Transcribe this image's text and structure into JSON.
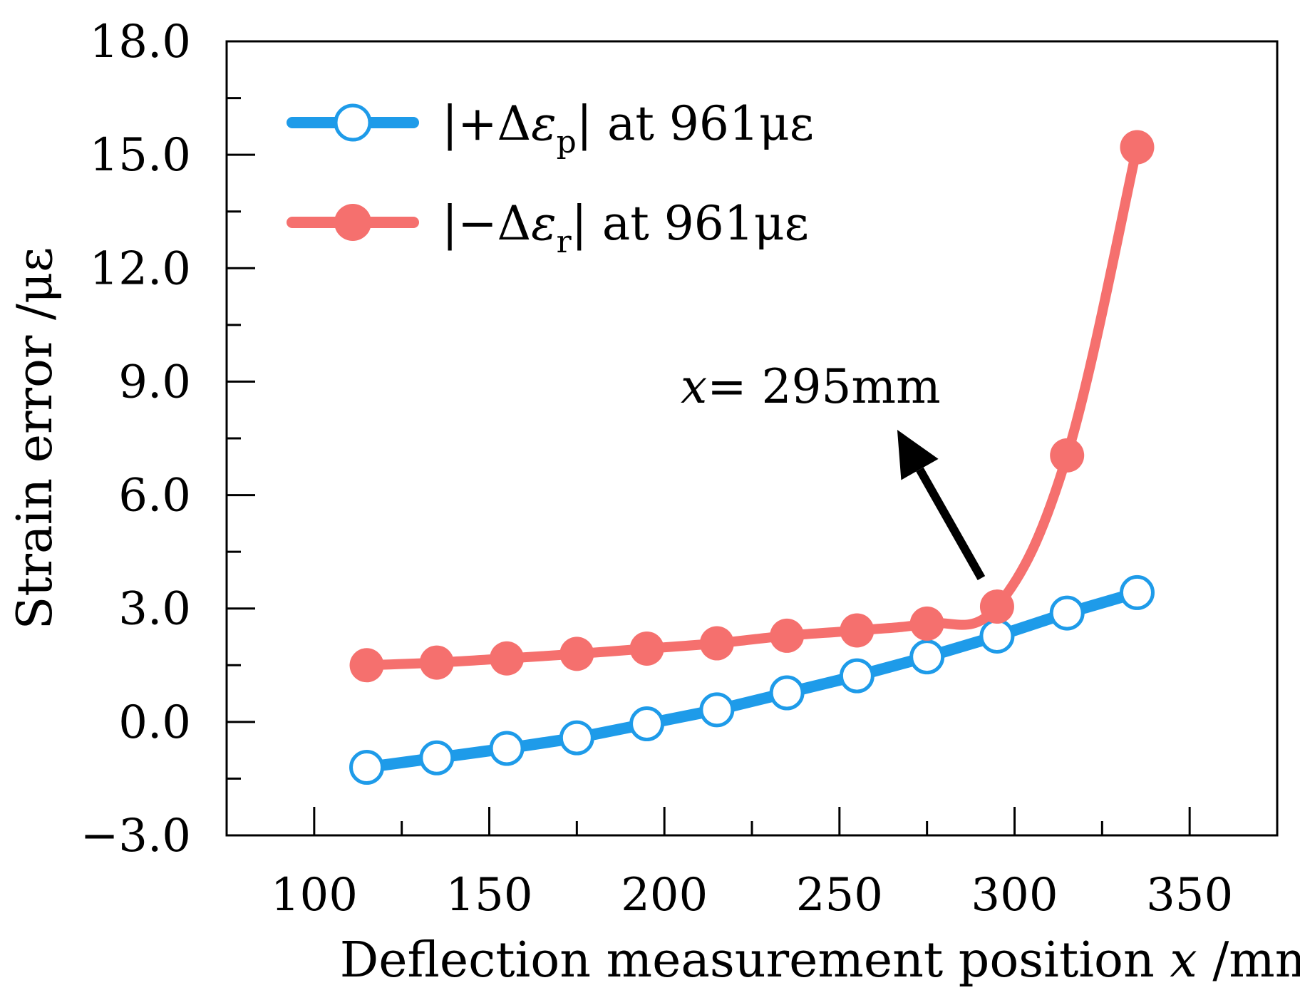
{
  "chart_data": {
    "type": "line",
    "title": "",
    "xlabel_prefix": "Deflection measurement position ",
    "xlabel_var": "x",
    "xlabel_suffix": " /mm",
    "ylabel": "Strain error /με",
    "xlim": [
      75,
      375
    ],
    "ylim": [
      -3.0,
      18.0
    ],
    "xticks": [
      100,
      150,
      200,
      250,
      300,
      350
    ],
    "xtick_labels": [
      "100",
      "150",
      "200",
      "250",
      "300",
      "350"
    ],
    "xminor_ticks": [
      125,
      175,
      225,
      275,
      325,
      375
    ],
    "yticks": [
      -3.0,
      0.0,
      3.0,
      6.0,
      9.0,
      12.0,
      15.0,
      18.0
    ],
    "ytick_labels": [
      "−3.0",
      "0.0",
      "3.0",
      "6.0",
      "9.0",
      "12.0",
      "15.0",
      "18.0"
    ],
    "yminor_ticks": [
      -1.5,
      1.5,
      4.5,
      7.5,
      10.5,
      13.5,
      16.5
    ],
    "x": [
      115,
      135,
      155,
      175,
      195,
      215,
      235,
      255,
      275,
      295,
      315,
      335
    ],
    "series": [
      {
        "name": "|+Δεp| at 961με",
        "legend_prefix": "|+Δ",
        "legend_symbol": "ε",
        "legend_sub": "p",
        "legend_suffix": "| at 961με",
        "color": "#1e9be9",
        "marker": "open-circle",
        "values": [
          -1.2,
          -0.95,
          -0.7,
          -0.42,
          -0.05,
          0.32,
          0.77,
          1.22,
          1.72,
          2.27,
          2.88,
          3.42
        ]
      },
      {
        "name": "|−Δεr| at 961με",
        "legend_prefix": "|−Δ",
        "legend_symbol": "ε",
        "legend_sub": "r",
        "legend_suffix": "| at 961με",
        "color": "#f5706e",
        "marker": "filled-circle",
        "values": [
          1.5,
          1.57,
          1.68,
          1.8,
          1.94,
          2.08,
          2.28,
          2.42,
          2.6,
          3.05,
          7.05,
          15.2
        ]
      }
    ],
    "annotation": {
      "var": "x",
      "text": "= 295mm",
      "arrow_to_x": 295,
      "arrow_to_y": 3.05
    }
  }
}
